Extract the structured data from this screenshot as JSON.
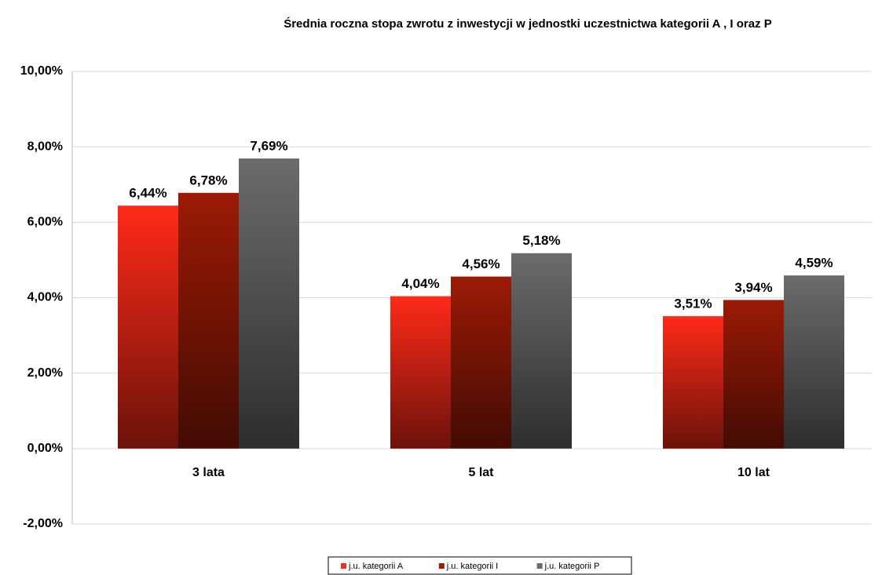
{
  "chart_data": {
    "type": "bar",
    "title": "Średnia roczna stopa zwrotu z inwestycji w jednostki uczestnictwa kategorii A , I oraz P",
    "categories": [
      "3 lata",
      "5 lat",
      "10 lat"
    ],
    "series": [
      {
        "name": "j.u. kategorii A",
        "color": "#ff2a18",
        "values": [
          6.44,
          4.04,
          3.51
        ],
        "value_labels": [
          "6,44%",
          "4,04%",
          "3,51%"
        ]
      },
      {
        "name": "j.u. kategorii I",
        "color": "#9c1a06",
        "values": [
          6.78,
          4.56,
          3.94
        ],
        "value_labels": [
          "6,78%",
          "4,56%",
          "3,94%"
        ]
      },
      {
        "name": "j.u. kategorii P",
        "color": "#6b6b6b",
        "values": [
          7.69,
          5.18,
          4.59
        ],
        "value_labels": [
          "7,69%",
          "5,18%",
          "4,59%"
        ]
      }
    ],
    "ylim": [
      -2,
      10
    ],
    "yticks": [
      {
        "value": -2,
        "label": "-2,00%"
      },
      {
        "value": 0,
        "label": "0,00%"
      },
      {
        "value": 2,
        "label": "2,00%"
      },
      {
        "value": 4,
        "label": "4,00%"
      },
      {
        "value": 6,
        "label": "6,00%"
      },
      {
        "value": 8,
        "label": "8,00%"
      },
      {
        "value": 10,
        "label": "10,00%"
      }
    ],
    "grid": true,
    "legend": "bottom"
  }
}
